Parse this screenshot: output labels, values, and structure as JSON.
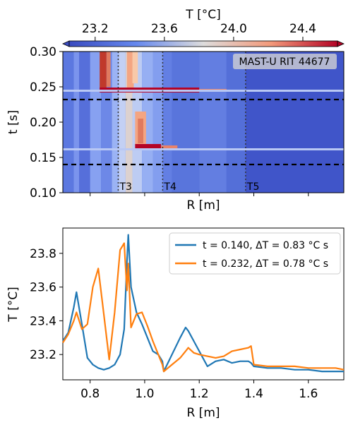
{
  "colorbar": {
    "label": "T [°C]",
    "ticks": [
      23.2,
      23.6,
      24.0,
      24.4
    ],
    "tick_labels": [
      "23.2",
      "23.6",
      "24.0",
      "24.4"
    ],
    "range": [
      23.05,
      24.6
    ]
  },
  "top_panel": {
    "annotation": "MAST-U RIT 44677",
    "ylabel": "t [s]",
    "xlabel": "R [m]",
    "yticks": [
      0.1,
      0.15,
      0.2,
      0.25,
      0.3
    ],
    "ytick_labels": [
      "0.10",
      "0.15",
      "0.20",
      "0.25",
      "0.30"
    ],
    "dashed_times": [
      0.14,
      0.232
    ],
    "markers": [
      {
        "label": "T3",
        "r": 0.903
      },
      {
        "label": "T4",
        "r": 1.066
      },
      {
        "label": "T5",
        "r": 1.37
      }
    ]
  },
  "chart_data": [
    {
      "type": "heatmap",
      "xlabel": "R [m]",
      "ylabel": "t [s]",
      "xlim": [
        0.7,
        1.73
      ],
      "ylim": [
        0.1,
        0.3
      ],
      "colorbar_label": "T [°C]",
      "colorbar_range": [
        23.05,
        24.6
      ],
      "annotations": [
        "MAST-U RIT 44677",
        "T3",
        "T4",
        "T5"
      ]
    },
    {
      "type": "line",
      "xlabel": "R [m]",
      "ylabel": "T [°C]",
      "xlim": [
        0.7,
        1.73
      ],
      "ylim": [
        23.05,
        23.95
      ],
      "xticks": [
        0.8,
        1.0,
        1.2,
        1.4,
        1.6
      ],
      "xtick_labels": [
        "0.8",
        "1.0",
        "1.2",
        "1.4",
        "1.6"
      ],
      "yticks": [
        23.2,
        23.4,
        23.6,
        23.8
      ],
      "ytick_labels": [
        "23.2",
        "23.4",
        "23.6",
        "23.8"
      ],
      "legend_position": "top-right",
      "series": [
        {
          "name": "t = 0.140, ΔT = 0.83 °C s",
          "color": "#1f77b4",
          "x": [
            0.7,
            0.72,
            0.74,
            0.75,
            0.77,
            0.79,
            0.81,
            0.83,
            0.85,
            0.87,
            0.89,
            0.91,
            0.925,
            0.935,
            0.94,
            0.95,
            0.97,
            0.99,
            1.01,
            1.03,
            1.05,
            1.065,
            1.07,
            1.1,
            1.13,
            1.15,
            1.16,
            1.18,
            1.2,
            1.23,
            1.26,
            1.29,
            1.32,
            1.35,
            1.38,
            1.39,
            1.4,
            1.45,
            1.5,
            1.55,
            1.6,
            1.65,
            1.7,
            1.73
          ],
          "y": [
            23.28,
            23.33,
            23.48,
            23.57,
            23.38,
            23.18,
            23.14,
            23.12,
            23.11,
            23.12,
            23.14,
            23.2,
            23.35,
            23.75,
            23.91,
            23.6,
            23.45,
            23.38,
            23.3,
            23.22,
            23.2,
            23.16,
            23.1,
            23.2,
            23.3,
            23.36,
            23.34,
            23.28,
            23.22,
            23.13,
            23.16,
            23.17,
            23.15,
            23.16,
            23.16,
            23.15,
            23.13,
            23.12,
            23.12,
            23.11,
            23.11,
            23.1,
            23.1,
            23.1
          ]
        },
        {
          "name": "t = 0.232, ΔT = 0.78 °C s",
          "color": "#ff7f0e",
          "x": [
            0.7,
            0.72,
            0.74,
            0.75,
            0.77,
            0.79,
            0.81,
            0.83,
            0.85,
            0.87,
            0.89,
            0.91,
            0.925,
            0.935,
            0.94,
            0.95,
            0.97,
            0.99,
            1.01,
            1.03,
            1.05,
            1.065,
            1.07,
            1.1,
            1.13,
            1.15,
            1.16,
            1.18,
            1.2,
            1.23,
            1.26,
            1.29,
            1.32,
            1.35,
            1.38,
            1.39,
            1.4,
            1.45,
            1.5,
            1.55,
            1.6,
            1.65,
            1.7,
            1.73
          ],
          "y": [
            23.27,
            23.32,
            23.4,
            23.45,
            23.35,
            23.38,
            23.6,
            23.71,
            23.44,
            23.17,
            23.45,
            23.82,
            23.86,
            23.58,
            23.74,
            23.36,
            23.44,
            23.45,
            23.37,
            23.28,
            23.2,
            23.14,
            23.1,
            23.14,
            23.18,
            23.22,
            23.24,
            23.21,
            23.2,
            23.19,
            23.18,
            23.19,
            23.22,
            23.23,
            23.24,
            23.25,
            23.14,
            23.13,
            23.13,
            23.13,
            23.12,
            23.12,
            23.12,
            23.11
          ]
        }
      ]
    }
  ]
}
